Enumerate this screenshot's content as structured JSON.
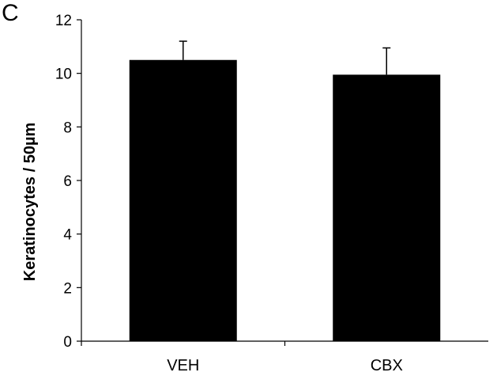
{
  "panel_label": "C",
  "chart_data": {
    "type": "bar",
    "categories": [
      "VEH",
      "CBX"
    ],
    "values": [
      10.5,
      9.95
    ],
    "errors": [
      0.7,
      1.0
    ],
    "xlabel": "",
    "ylabel": "Keratinocytes / 50µm",
    "ylim": [
      0,
      12
    ],
    "yticks": [
      0,
      2,
      4,
      6,
      8,
      10,
      12
    ],
    "grid": false,
    "bar_color": "#000000"
  }
}
